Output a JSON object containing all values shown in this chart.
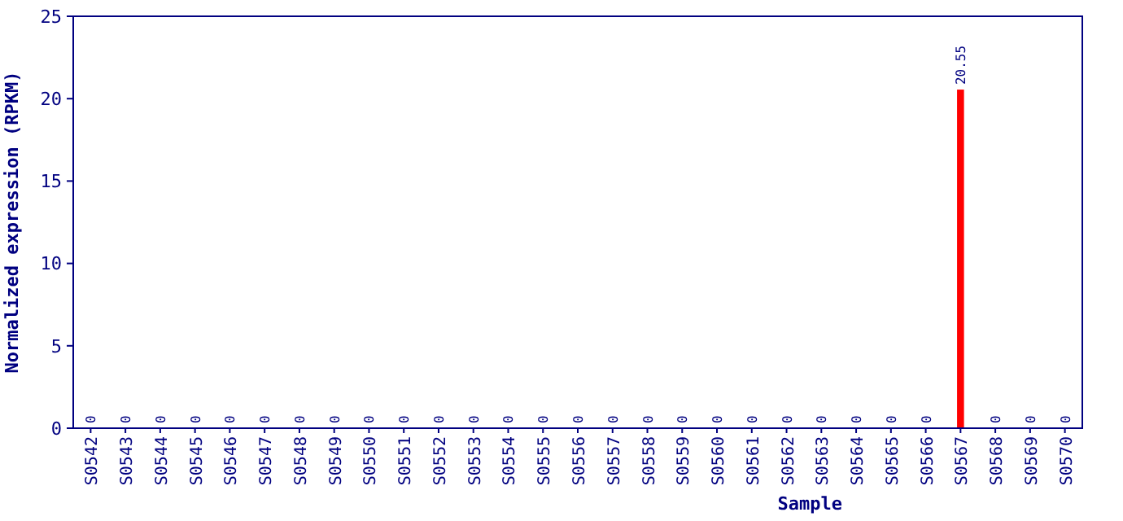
{
  "chart_data": {
    "type": "bar",
    "xlabel": "Sample",
    "ylabel": "Normalized expression (RPKM)",
    "categories": [
      "S0542",
      "S0543",
      "S0544",
      "S0545",
      "S0546",
      "S0547",
      "S0548",
      "S0549",
      "S0550",
      "S0551",
      "S0552",
      "S0553",
      "S0554",
      "S0555",
      "S0556",
      "S0557",
      "S0558",
      "S0559",
      "S0560",
      "S0561",
      "S0562",
      "S0563",
      "S0564",
      "S0565",
      "S0566",
      "S0567",
      "S0568",
      "S0569",
      "S0570"
    ],
    "values": [
      0,
      0,
      0,
      0,
      0,
      0,
      0,
      0,
      0,
      0,
      0,
      0,
      0,
      0,
      0,
      0,
      0,
      0,
      0,
      0,
      0,
      0,
      0,
      0,
      0,
      20.55,
      0,
      0,
      0
    ],
    "value_labels": [
      "0",
      "0",
      "0",
      "0",
      "0",
      "0",
      "0",
      "0",
      "0",
      "0",
      "0",
      "0",
      "0",
      "0",
      "0",
      "0",
      "0",
      "0",
      "0",
      "0",
      "0",
      "0",
      "0",
      "0",
      "0",
      "20.55",
      "0",
      "0",
      "0"
    ],
    "color": "#ff0000",
    "ylim": [
      0,
      25
    ],
    "yticks": [
      0,
      5,
      10,
      15,
      20,
      25
    ],
    "grid": false
  }
}
